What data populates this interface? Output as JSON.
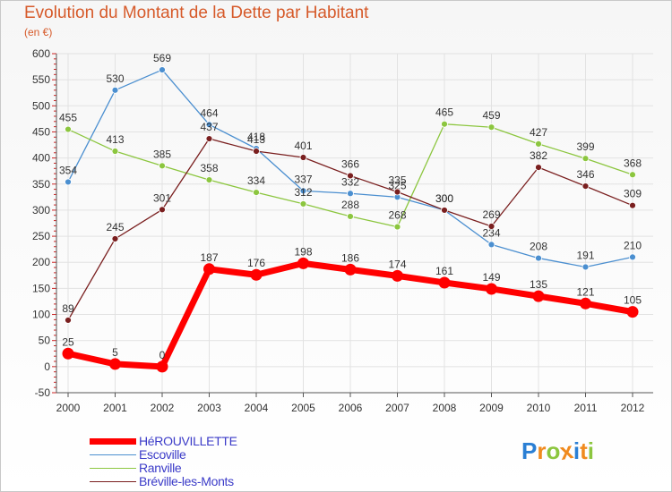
{
  "header": {
    "title": "Evolution du Montant de la Dette par Habitant",
    "unit": "(en €)"
  },
  "logo": {
    "text": "Proxiti",
    "letters": [
      "P",
      "r",
      "o",
      "x",
      "i",
      "t",
      "i"
    ],
    "colors": [
      "#2a7fd4",
      "#f08a1e",
      "#8cc63f",
      "#f08a1e",
      "#2a7fd4",
      "#f08a1e",
      "#8cc63f"
    ]
  },
  "chart_data": {
    "type": "line",
    "title": "Evolution du Montant de la Dette par Habitant",
    "subtitle": "(en €)",
    "xlabel": "",
    "ylabel": "",
    "x": [
      "2000",
      "2001",
      "2002",
      "2003",
      "2004",
      "2005",
      "2006",
      "2007",
      "2008",
      "2009",
      "2010",
      "2011",
      "2012"
    ],
    "ylim": [
      -50,
      600
    ],
    "yticks": [
      "-50",
      "0",
      "50",
      "100",
      "150",
      "200",
      "250",
      "300",
      "350",
      "400",
      "450",
      "500",
      "550",
      "600"
    ],
    "grid": true,
    "legend_position": "bottom-left",
    "series": [
      {
        "name": "Escoville",
        "color": "#4b8fd0",
        "values": [
          354,
          530,
          569,
          464,
          418,
          337,
          332,
          325,
          300,
          234,
          208,
          191,
          210
        ],
        "labels": [
          "354",
          "530",
          "569",
          "464",
          "418",
          "337",
          "332",
          "325",
          "300",
          "234",
          "208",
          "191",
          "210"
        ]
      },
      {
        "name": "Ranville",
        "color": "#8cc63f",
        "values": [
          455,
          413,
          385,
          358,
          334,
          312,
          288,
          268,
          465,
          459,
          427,
          399,
          368
        ],
        "labels": [
          "455",
          "413",
          "385",
          "358",
          "334",
          "312",
          "288",
          "268",
          "465",
          "459",
          "427",
          "399",
          "368"
        ]
      },
      {
        "name": "Bréville-les-Monts",
        "color": "#7a1f1f",
        "values": [
          89,
          245,
          301,
          437,
          413,
          401,
          366,
          335,
          300,
          269,
          382,
          346,
          309
        ],
        "labels": [
          "89",
          "245",
          "301",
          "437",
          "413",
          "401",
          "366",
          "335",
          "300",
          "269",
          "382",
          "346",
          "309"
        ]
      },
      {
        "name": "HéROUVILLETTE",
        "color": "#ff0000",
        "values": [
          25,
          5,
          0,
          187,
          176,
          198,
          186,
          174,
          161,
          149,
          135,
          121,
          105
        ],
        "labels": [
          "25",
          "5",
          "0",
          "187",
          "176",
          "198",
          "186",
          "174",
          "161",
          "149",
          "135",
          "121",
          "105"
        ]
      }
    ]
  },
  "legend": {
    "items": [
      {
        "label": "HéROUVILLETTE",
        "color": "#ff0000",
        "thickness": 7
      },
      {
        "label": "Escoville",
        "color": "#4b8fd0",
        "thickness": 1.5
      },
      {
        "label": "Ranville",
        "color": "#8cc63f",
        "thickness": 1.5
      },
      {
        "label": "Bréville-les-Monts",
        "color": "#7a1f1f",
        "thickness": 1.5
      }
    ]
  }
}
